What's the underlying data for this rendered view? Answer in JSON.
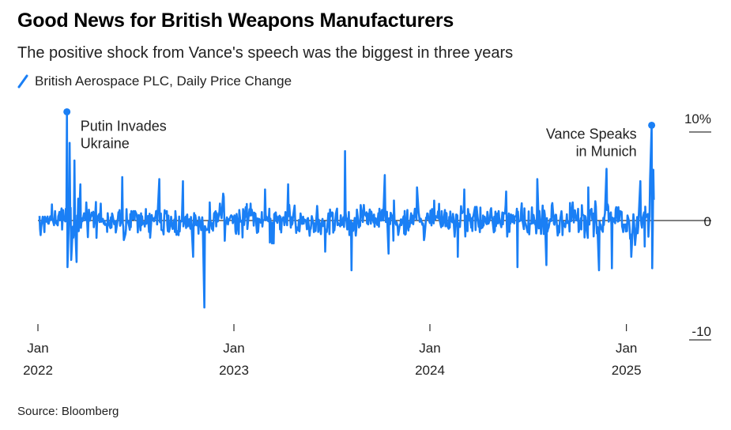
{
  "chart_data": {
    "type": "line",
    "title": "Good News for British Weapons Manufacturers",
    "subtitle": "The positive shock from Vance's speech was the biggest in three years",
    "legend": "British Aerospace PLC, Daily Price Change",
    "source": "Source: Bloomberg",
    "unit": "%",
    "ylim": [
      -10,
      10
    ],
    "y_ticks": [
      {
        "value": 10,
        "label": "10%"
      },
      {
        "value": 0,
        "label": "0"
      },
      {
        "value": -10,
        "label": "-10"
      }
    ],
    "x_ticks": [
      {
        "date": "2022-01-01",
        "month": "Jan",
        "year": "2022"
      },
      {
        "date": "2023-01-01",
        "month": "Jan",
        "year": "2023"
      },
      {
        "date": "2024-01-01",
        "month": "Jan",
        "year": "2024"
      },
      {
        "date": "2025-01-01",
        "month": "Jan",
        "year": "2025"
      }
    ],
    "x_range": [
      "2022-01-01",
      "2025-02-28"
    ],
    "series": [
      {
        "name": "British Aerospace PLC, Daily Price Change",
        "color": "#1a7ff5",
        "approximate": true,
        "noise_amplitude": 1.7,
        "notable_points": [
          {
            "date": "2022-02-24",
            "value": 10.5,
            "label": "Putin Invades\nUkraine",
            "marker": true
          },
          {
            "date": "2022-02-25",
            "value": -4.5
          },
          {
            "date": "2022-03-01",
            "value": 7.5
          },
          {
            "date": "2022-03-04",
            "value": -3.8
          },
          {
            "date": "2022-03-10",
            "value": 5.8
          },
          {
            "date": "2022-03-14",
            "value": -4.0
          },
          {
            "date": "2022-03-21",
            "value": 3.5
          },
          {
            "date": "2022-06-07",
            "value": 4.2
          },
          {
            "date": "2022-08-15",
            "value": 4.0
          },
          {
            "date": "2022-09-28",
            "value": 3.8
          },
          {
            "date": "2022-10-17",
            "value": -3.5
          },
          {
            "date": "2022-11-07",
            "value": -8.4
          },
          {
            "date": "2022-12-12",
            "value": 2.6
          },
          {
            "date": "2023-02-28",
            "value": 3.0
          },
          {
            "date": "2023-04-12",
            "value": 3.5
          },
          {
            "date": "2023-06-20",
            "value": -3.0
          },
          {
            "date": "2023-07-27",
            "value": 6.7
          },
          {
            "date": "2023-08-08",
            "value": -4.8
          },
          {
            "date": "2023-10-09",
            "value": 4.4
          },
          {
            "date": "2023-10-16",
            "value": -3.2
          },
          {
            "date": "2023-12-08",
            "value": 3.2
          },
          {
            "date": "2024-02-22",
            "value": -3.5
          },
          {
            "date": "2024-03-05",
            "value": 3.0
          },
          {
            "date": "2024-05-22",
            "value": 2.8
          },
          {
            "date": "2024-06-12",
            "value": -4.5
          },
          {
            "date": "2024-07-19",
            "value": 4.0
          },
          {
            "date": "2024-08-05",
            "value": -4.3
          },
          {
            "date": "2024-10-22",
            "value": 3.2
          },
          {
            "date": "2024-11-11",
            "value": -4.8
          },
          {
            "date": "2024-11-25",
            "value": 5.0
          },
          {
            "date": "2024-12-05",
            "value": -4.6
          },
          {
            "date": "2025-01-10",
            "value": -3.5
          },
          {
            "date": "2025-01-27",
            "value": 3.8
          },
          {
            "date": "2025-02-04",
            "value": -2.5
          },
          {
            "date": "2025-02-14",
            "value": 4.0
          },
          {
            "date": "2025-02-17",
            "value": 9.2,
            "label": "Vance Speaks\nin Munich",
            "marker": true
          },
          {
            "date": "2025-02-18",
            "value": -4.6
          },
          {
            "date": "2025-02-20",
            "value": 4.9
          },
          {
            "date": "2025-02-21",
            "value": 2.0
          }
        ]
      }
    ],
    "annotations": [
      {
        "text": "Putin Invades\nUkraine",
        "date": "2022-02-24",
        "value": 10.5,
        "align": "left"
      },
      {
        "text": "Vance Speaks\nin Munich",
        "date": "2025-02-17",
        "value": 9.2,
        "align": "right"
      }
    ],
    "grid": false,
    "legend_position": "top-left"
  }
}
